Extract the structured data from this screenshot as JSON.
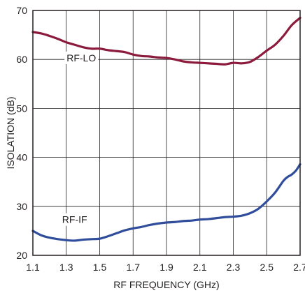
{
  "chart_data": {
    "type": "line",
    "title": "",
    "xlabel": "RF FREQUENCY (GHz)",
    "ylabel": "ISOLATION (dB)",
    "xlim": [
      1.1,
      2.7
    ],
    "ylim": [
      20,
      70
    ],
    "grid": true,
    "x_ticks": [
      "1.1",
      "1.3",
      "1.5",
      "1.7",
      "1.9",
      "2.1",
      "2.3",
      "2.5",
      "2.7"
    ],
    "y_ticks": [
      "20",
      "30",
      "40",
      "50",
      "60",
      "70"
    ],
    "series": [
      {
        "name": "RF-LO",
        "color": "#8b1a3c",
        "x": [
          1.1,
          1.15,
          1.2,
          1.25,
          1.3,
          1.35,
          1.4,
          1.45,
          1.5,
          1.55,
          1.6,
          1.65,
          1.7,
          1.75,
          1.8,
          1.85,
          1.9,
          1.95,
          2.0,
          2.05,
          2.1,
          2.15,
          2.2,
          2.25,
          2.3,
          2.35,
          2.4,
          2.45,
          2.5,
          2.55,
          2.6,
          2.65,
          2.7
        ],
        "y": [
          65.6,
          65.3,
          64.8,
          64.2,
          63.5,
          63.0,
          62.5,
          62.2,
          62.2,
          61.9,
          61.7,
          61.5,
          61.0,
          60.7,
          60.6,
          60.4,
          60.3,
          60.0,
          59.6,
          59.4,
          59.3,
          59.2,
          59.1,
          59.0,
          59.3,
          59.2,
          59.5,
          60.5,
          61.8,
          63.0,
          64.8,
          67.0,
          68.5
        ]
      },
      {
        "name": "RF-IF",
        "color": "#2f4d9a",
        "x": [
          1.1,
          1.15,
          1.2,
          1.25,
          1.3,
          1.35,
          1.4,
          1.45,
          1.5,
          1.55,
          1.6,
          1.65,
          1.7,
          1.75,
          1.8,
          1.85,
          1.9,
          1.95,
          2.0,
          2.05,
          2.1,
          2.15,
          2.2,
          2.25,
          2.3,
          2.35,
          2.4,
          2.45,
          2.5,
          2.55,
          2.6,
          2.625,
          2.65,
          2.675,
          2.7
        ],
        "y": [
          25.0,
          24.1,
          23.6,
          23.3,
          23.1,
          23.0,
          23.2,
          23.3,
          23.4,
          23.9,
          24.5,
          25.1,
          25.5,
          25.8,
          26.2,
          26.5,
          26.7,
          26.8,
          27.0,
          27.1,
          27.3,
          27.4,
          27.6,
          27.8,
          27.9,
          28.1,
          28.6,
          29.5,
          31.0,
          32.8,
          35.2,
          36.0,
          36.5,
          37.3,
          38.6
        ]
      }
    ],
    "annotations": [
      {
        "text": "RF-LO",
        "x": 1.39,
        "y": 59.6,
        "series": "RF-LO"
      },
      {
        "text": "RF-IF",
        "x": 1.35,
        "y": 26.6,
        "series": "RF-IF"
      }
    ]
  }
}
